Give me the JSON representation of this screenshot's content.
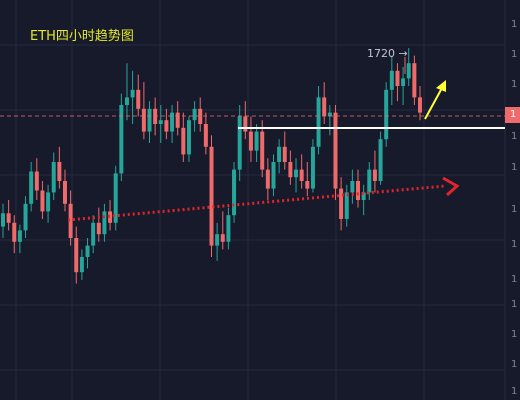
{
  "title": "ETH四小时趋势图",
  "high_label": "1720 →",
  "current_price_tag": "1",
  "axis_tick_labels": [
    "1",
    "1",
    "1",
    "1",
    "1",
    "1",
    "1",
    "1",
    "1",
    "1",
    "1",
    "1"
  ],
  "colors": {
    "background": "#161a2b",
    "grid": "#252a3d",
    "up": "#26a69a",
    "down": "#ef6a6a",
    "title": "#e4e82a",
    "trendline": "#e0262b",
    "resistance": "#ffffff",
    "arrow_up": "#ffff33"
  },
  "chart_data": {
    "type": "candlestick",
    "title": "ETH四小时趋势图",
    "annotations": [
      {
        "type": "label",
        "text": "1720 →",
        "meaning": "high"
      },
      {
        "type": "trendline",
        "style": "dotted red with arrow",
        "direction": "rising support"
      },
      {
        "type": "horizontal_line",
        "style": "white solid",
        "meaning": "breakout level"
      },
      {
        "type": "arrow",
        "style": "yellow",
        "direction": "up"
      },
      {
        "type": "horizontal_line",
        "style": "dashed red",
        "meaning": "current price"
      }
    ],
    "candles": [
      [
        1626,
        1638,
        1620,
        1633
      ],
      [
        1633,
        1640,
        1624,
        1628
      ],
      [
        1628,
        1632,
        1612,
        1618
      ],
      [
        1618,
        1627,
        1612,
        1624
      ],
      [
        1624,
        1642,
        1620,
        1638
      ],
      [
        1638,
        1660,
        1634,
        1655
      ],
      [
        1655,
        1662,
        1640,
        1645
      ],
      [
        1645,
        1650,
        1630,
        1634
      ],
      [
        1634,
        1648,
        1628,
        1644
      ],
      [
        1644,
        1665,
        1640,
        1660
      ],
      [
        1660,
        1668,
        1646,
        1650
      ],
      [
        1650,
        1656,
        1634,
        1638
      ],
      [
        1638,
        1645,
        1616,
        1620
      ],
      [
        1620,
        1626,
        1596,
        1602
      ],
      [
        1602,
        1614,
        1598,
        1610
      ],
      [
        1610,
        1620,
        1604,
        1616
      ],
      [
        1616,
        1632,
        1612,
        1628
      ],
      [
        1628,
        1636,
        1618,
        1622
      ],
      [
        1622,
        1638,
        1618,
        1634
      ],
      [
        1634,
        1640,
        1624,
        1628
      ],
      [
        1628,
        1658,
        1624,
        1654
      ],
      [
        1654,
        1696,
        1650,
        1690
      ],
      [
        1690,
        1712,
        1682,
        1694
      ],
      [
        1694,
        1708,
        1680,
        1698
      ],
      [
        1698,
        1706,
        1684,
        1688
      ],
      [
        1688,
        1702,
        1672,
        1676
      ],
      [
        1676,
        1692,
        1670,
        1688
      ],
      [
        1688,
        1694,
        1674,
        1680
      ],
      [
        1680,
        1690,
        1670,
        1682
      ],
      [
        1682,
        1688,
        1672,
        1676
      ],
      [
        1676,
        1690,
        1670,
        1686
      ],
      [
        1686,
        1692,
        1674,
        1678
      ],
      [
        1678,
        1686,
        1660,
        1664
      ],
      [
        1664,
        1684,
        1660,
        1682
      ],
      [
        1682,
        1692,
        1676,
        1688
      ],
      [
        1688,
        1694,
        1676,
        1680
      ],
      [
        1680,
        1686,
        1664,
        1668
      ],
      [
        1668,
        1674,
        1610,
        1616
      ],
      [
        1616,
        1628,
        1608,
        1622
      ],
      [
        1622,
        1634,
        1614,
        1618
      ],
      [
        1618,
        1636,
        1614,
        1632
      ],
      [
        1632,
        1660,
        1628,
        1656
      ],
      [
        1656,
        1690,
        1650,
        1684
      ],
      [
        1684,
        1692,
        1672,
        1676
      ],
      [
        1676,
        1684,
        1660,
        1666
      ],
      [
        1666,
        1680,
        1660,
        1676
      ],
      [
        1676,
        1682,
        1652,
        1656
      ],
      [
        1656,
        1662,
        1640,
        1646
      ],
      [
        1646,
        1664,
        1642,
        1660
      ],
      [
        1660,
        1672,
        1654,
        1668
      ],
      [
        1668,
        1676,
        1656,
        1660
      ],
      [
        1660,
        1666,
        1648,
        1652
      ],
      [
        1652,
        1662,
        1644,
        1656
      ],
      [
        1656,
        1664,
        1646,
        1650
      ],
      [
        1650,
        1660,
        1642,
        1646
      ],
      [
        1646,
        1672,
        1644,
        1668
      ],
      [
        1668,
        1700,
        1664,
        1694
      ],
      [
        1694,
        1702,
        1680,
        1684
      ],
      [
        1684,
        1690,
        1674,
        1686
      ],
      [
        1686,
        1690,
        1640,
        1646
      ],
      [
        1646,
        1652,
        1624,
        1630
      ],
      [
        1630,
        1648,
        1626,
        1644
      ],
      [
        1644,
        1656,
        1638,
        1650
      ],
      [
        1650,
        1656,
        1636,
        1640
      ],
      [
        1640,
        1648,
        1632,
        1644
      ],
      [
        1644,
        1660,
        1640,
        1656
      ],
      [
        1656,
        1666,
        1644,
        1650
      ],
      [
        1650,
        1676,
        1648,
        1672
      ],
      [
        1672,
        1702,
        1668,
        1698
      ],
      [
        1698,
        1716,
        1690,
        1708
      ],
      [
        1708,
        1712,
        1692,
        1700
      ],
      [
        1700,
        1710,
        1690,
        1704
      ],
      [
        1704,
        1720,
        1700,
        1712
      ],
      [
        1712,
        1716,
        1690,
        1694
      ],
      [
        1694,
        1700,
        1682,
        1686
      ]
    ],
    "y_range": [
      1540,
      1740
    ],
    "grid": true
  }
}
